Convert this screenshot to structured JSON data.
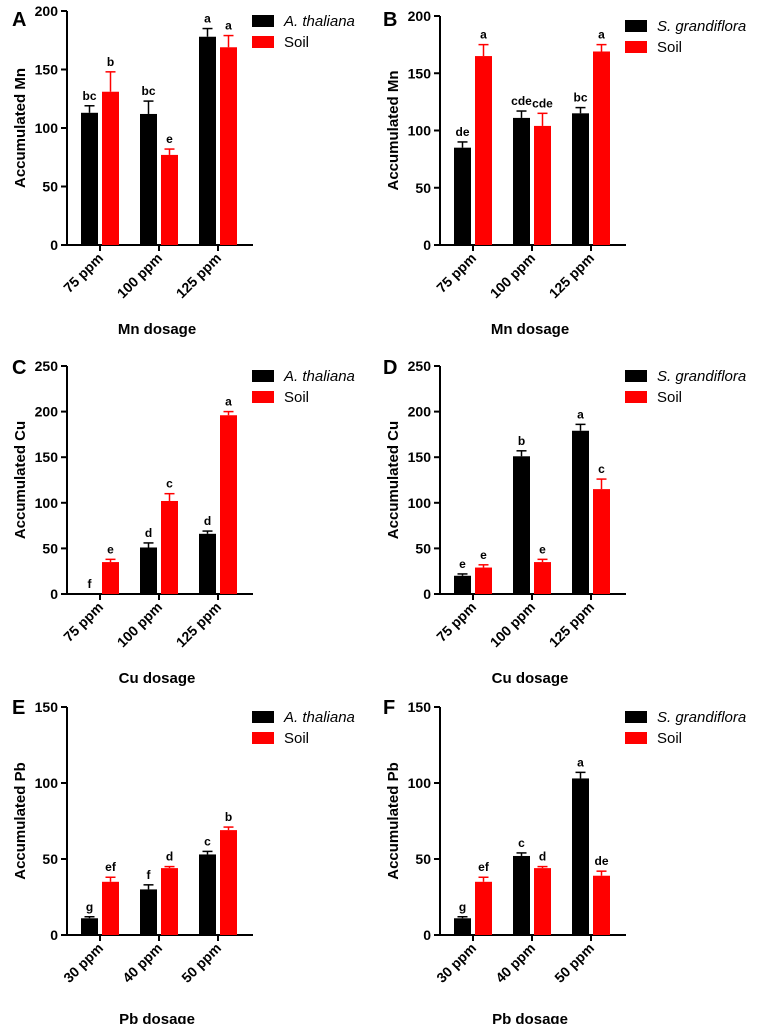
{
  "colors": {
    "plant": "#000000",
    "soil": "#ff0000",
    "axis": "#000000"
  },
  "chart_data": [
    {
      "panel": "A",
      "type": "bar",
      "categories": [
        "75 ppm",
        "100 ppm",
        "125 ppm"
      ],
      "xlabel": "Mn dosage",
      "ylabel": "Accumulated Mn",
      "ylim": [
        0,
        200
      ],
      "yticks": [
        "0",
        "50",
        "100",
        "150",
        "200"
      ],
      "legend": "top-right",
      "series": [
        {
          "name": "A. thaliana",
          "italic": true,
          "color_key": "plant",
          "values": [
            113,
            112,
            178
          ],
          "errors": [
            6,
            11,
            7
          ],
          "letters": [
            "bc",
            "bc",
            "a"
          ]
        },
        {
          "name": "Soil",
          "italic": false,
          "color_key": "soil",
          "values": [
            131,
            77,
            169
          ],
          "errors": [
            17,
            5,
            10
          ],
          "letters": [
            "b",
            "e",
            "a"
          ]
        }
      ]
    },
    {
      "panel": "B",
      "type": "bar",
      "categories": [
        "75 ppm",
        "100 ppm",
        "125 ppm"
      ],
      "xlabel": "Mn dosage",
      "ylabel": "Accumulated Mn",
      "ylim": [
        0,
        200
      ],
      "yticks": [
        "0",
        "50",
        "100",
        "150",
        "200"
      ],
      "legend": "top-right",
      "series": [
        {
          "name": "S. grandiflora",
          "italic": true,
          "color_key": "plant",
          "values": [
            85,
            111,
            115
          ],
          "errors": [
            5,
            6,
            5
          ],
          "letters": [
            "de",
            "cde",
            "bc"
          ]
        },
        {
          "name": "Soil",
          "italic": false,
          "color_key": "soil",
          "values": [
            165,
            104,
            169
          ],
          "errors": [
            10,
            11,
            6
          ],
          "letters": [
            "a",
            "cde",
            "a"
          ]
        }
      ]
    },
    {
      "panel": "C",
      "type": "bar",
      "categories": [
        "75 ppm",
        "100 ppm",
        "125 ppm"
      ],
      "xlabel": "Cu dosage",
      "ylabel": "Accumulated Cu",
      "ylim": [
        0,
        250
      ],
      "yticks": [
        "0",
        "50",
        "100",
        "150",
        "200",
        "250"
      ],
      "legend": "top-right",
      "series": [
        {
          "name": "A. thaliana",
          "italic": true,
          "color_key": "plant",
          "values": [
            0,
            51,
            66
          ],
          "errors": [
            0,
            5,
            3
          ],
          "letters": [
            "f",
            "d",
            "d"
          ]
        },
        {
          "name": "Soil",
          "italic": false,
          "color_key": "soil",
          "values": [
            35,
            102,
            196
          ],
          "errors": [
            3,
            8,
            4
          ],
          "letters": [
            "e",
            "c",
            "a"
          ]
        }
      ]
    },
    {
      "panel": "D",
      "type": "bar",
      "categories": [
        "75 ppm",
        "100 ppm",
        "125 ppm"
      ],
      "xlabel": "Cu dosage",
      "ylabel": "Accumulated Cu",
      "ylim": [
        0,
        250
      ],
      "yticks": [
        "0",
        "50",
        "100",
        "150",
        "200",
        "250"
      ],
      "legend": "top-right",
      "series": [
        {
          "name": "S. grandiflora",
          "italic": true,
          "color_key": "plant",
          "values": [
            20,
            151,
            179
          ],
          "errors": [
            2,
            6,
            7
          ],
          "letters": [
            "e",
            "b",
            "a"
          ]
        },
        {
          "name": "Soil",
          "italic": false,
          "color_key": "soil",
          "values": [
            29,
            35,
            115
          ],
          "errors": [
            3,
            3,
            11
          ],
          "letters": [
            "e",
            "e",
            "c"
          ]
        }
      ]
    },
    {
      "panel": "E",
      "type": "bar",
      "categories": [
        "30 ppm",
        "40 ppm",
        "50 ppm"
      ],
      "xlabel": "Pb dosage",
      "ylabel": "Accumulated Pb",
      "ylim": [
        0,
        150
      ],
      "yticks": [
        "0",
        "50",
        "100",
        "150"
      ],
      "legend": "top-right",
      "series": [
        {
          "name": "A. thaliana",
          "italic": true,
          "color_key": "plant",
          "values": [
            11,
            30,
            53
          ],
          "errors": [
            1,
            3,
            2
          ],
          "letters": [
            "g",
            "f",
            "c"
          ]
        },
        {
          "name": "Soil",
          "italic": false,
          "color_key": "soil",
          "values": [
            35,
            44,
            69
          ],
          "errors": [
            3,
            1,
            2
          ],
          "letters": [
            "ef",
            "d",
            "b"
          ]
        }
      ]
    },
    {
      "panel": "F",
      "type": "bar",
      "categories": [
        "30 ppm",
        "40 ppm",
        "50 ppm"
      ],
      "xlabel": "Pb dosage",
      "ylabel": "Accumulated Pb",
      "ylim": [
        0,
        150
      ],
      "yticks": [
        "0",
        "50",
        "100",
        "150"
      ],
      "legend": "top-right",
      "series": [
        {
          "name": "S. grandiflora",
          "italic": true,
          "color_key": "plant",
          "values": [
            11,
            52,
            103
          ],
          "errors": [
            1,
            2,
            4
          ],
          "letters": [
            "g",
            "c",
            "a"
          ]
        },
        {
          "name": "Soil",
          "italic": false,
          "color_key": "soil",
          "values": [
            35,
            44,
            39
          ],
          "errors": [
            3,
            1,
            3
          ],
          "letters": [
            "ef",
            "d",
            "de"
          ]
        }
      ]
    }
  ]
}
